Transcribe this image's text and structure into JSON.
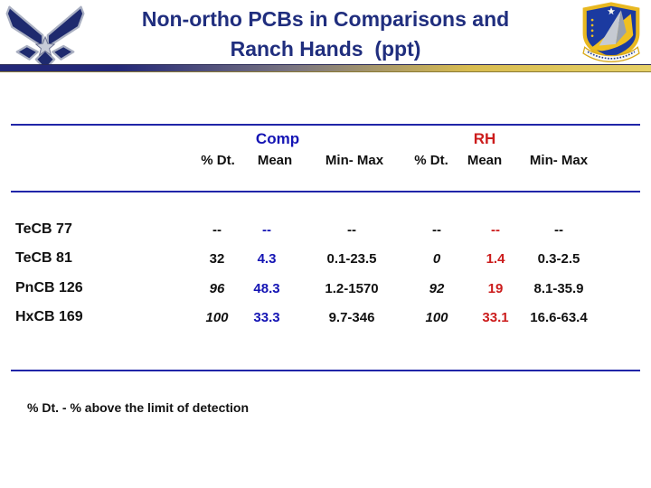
{
  "slide": {
    "title_line1": "Non-ortho PCBs in Comparisons and",
    "title_line2": "Ranch Hands  (ppt)",
    "footnote": "% Dt. - % above the limit of detection"
  },
  "icons": {
    "left_logo": "us-air-force-wings-logo",
    "right_logo": "afrl-shield-logo"
  },
  "colors": {
    "title_navy": "#202e7e",
    "comp_blue": "#1414b4",
    "rh_red": "#cc1c1c",
    "rule_blue": "#2025a8",
    "text_black": "#111111",
    "bar_navy": "#232878",
    "bar_gray": "#7a7580",
    "bar_gold": "#d8bc50",
    "bar_gold_light": "#e6d066"
  },
  "table": {
    "groups": [
      {
        "label": "Comp",
        "color_key": "comp_blue"
      },
      {
        "label": "RH",
        "color_key": "rh_red"
      }
    ],
    "column_headers": [
      "% Dt.",
      "Mean",
      "Min- Max",
      "% Dt.",
      "Mean",
      "Min- Max"
    ],
    "rows": [
      {
        "label": "TeCB 77",
        "cells": [
          {
            "t": "--"
          },
          {
            "t": "--"
          },
          {
            "t": "--"
          },
          {
            "t": "--"
          },
          {
            "t": "--"
          },
          {
            "t": "--"
          }
        ]
      },
      {
        "label": "TeCB 81",
        "cells": [
          {
            "t": "32"
          },
          {
            "t": "4.3"
          },
          {
            "t": "0.1-23.5"
          },
          {
            "t": "0",
            "i": true
          },
          {
            "t": "1.4"
          },
          {
            "t": "0.3-2.5"
          }
        ]
      },
      {
        "label": "PnCB 126",
        "cells": [
          {
            "t": "96",
            "i": true
          },
          {
            "t": "48.3"
          },
          {
            "t": "1.2-1570"
          },
          {
            "t": "92",
            "i": true
          },
          {
            "t": "19"
          },
          {
            "t": "8.1-35.9"
          }
        ]
      },
      {
        "label": "HxCB 169",
        "cells": [
          {
            "t": "100",
            "i": true
          },
          {
            "t": "33.3"
          },
          {
            "t": "9.7-346"
          },
          {
            "t": "100",
            "i": true
          },
          {
            "t": "33.1"
          },
          {
            "t": "16.6-63.4"
          }
        ]
      }
    ]
  }
}
